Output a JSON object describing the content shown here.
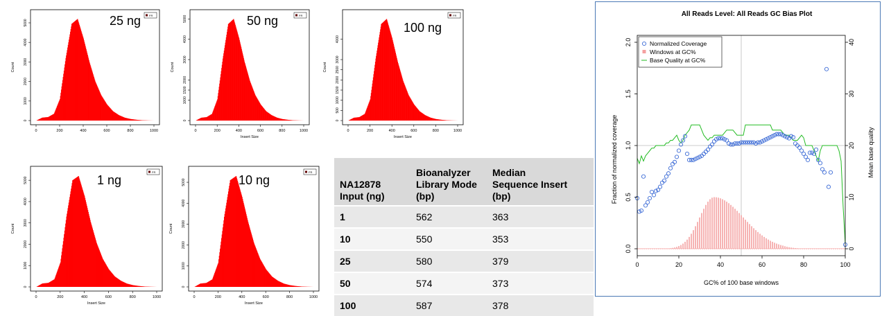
{
  "histograms": [
    {
      "id": "h25",
      "sample_label": "25 ng",
      "ylabel": "Count",
      "xlabel": "",
      "legend": "FR",
      "peak": 5200,
      "yticks": [
        0,
        1000,
        2000,
        3000,
        4000,
        5000
      ],
      "xticks": [
        0,
        200,
        400,
        600,
        800,
        1000
      ]
    },
    {
      "id": "h50",
      "sample_label": "50 ng",
      "ylabel": "Count",
      "xlabel": "Insert Size",
      "legend": "FR",
      "peak": 5000,
      "yticks": [
        0,
        1000,
        1500,
        2000,
        3000,
        4000,
        5000
      ],
      "xticks": [
        0,
        200,
        400,
        600,
        800,
        1000
      ]
    },
    {
      "id": "h100",
      "sample_label": "100 ng",
      "ylabel": "Count",
      "xlabel": "Insert Size",
      "legend": "FR",
      "peak": 5000,
      "yticks": [
        0,
        500,
        1000,
        1500,
        2000,
        2500,
        3000,
        4000
      ],
      "xticks": [
        0,
        200,
        400,
        600,
        800,
        1000
      ]
    },
    {
      "id": "h1",
      "sample_label": "1 ng",
      "ylabel": "Count",
      "xlabel": "Insert Size",
      "legend": "FR",
      "peak": 5200,
      "yticks": [
        0,
        1000,
        2000,
        3000,
        4000,
        5000
      ],
      "xticks": [
        0,
        200,
        400,
        600,
        800,
        1000
      ]
    },
    {
      "id": "h10",
      "sample_label": "10 ng",
      "ylabel": "Count",
      "xlabel": "Insert Size",
      "legend": "FR",
      "peak": 5300,
      "yticks": [
        0,
        1000,
        2000,
        3000,
        4000,
        5000
      ],
      "xticks": [
        0,
        200,
        400,
        600,
        800,
        1000
      ]
    }
  ],
  "table": {
    "headers": [
      "NA12878\nInput (ng)",
      "Bioanalyzer\nLibrary Mode\n(bp)",
      "Median\nSequence Insert\n(bp)"
    ],
    "rows": [
      [
        "1",
        "562",
        "363"
      ],
      [
        "10",
        "550",
        "353"
      ],
      [
        "25",
        "580",
        "379"
      ],
      [
        "50",
        "574",
        "373"
      ],
      [
        "100",
        "587",
        "378"
      ]
    ]
  },
  "chart_data": [
    {
      "type": "bar",
      "title": "",
      "xlabel": "Insert Size",
      "ylabel": "Count",
      "note": "Five insert-size histograms (25, 50, 100, 1, 10 ng), each peaking near 350 bp",
      "x": [
        0,
        50,
        100,
        150,
        200,
        250,
        300,
        350,
        400,
        450,
        500,
        550,
        600,
        650,
        700,
        750,
        800,
        850,
        900,
        950,
        1000
      ],
      "series": [
        {
          "name": "25 ng",
          "values": [
            0,
            150,
            180,
            350,
            1100,
            3200,
            4950,
            5200,
            4200,
            3000,
            2000,
            1300,
            820,
            480,
            280,
            150,
            80,
            40,
            15,
            5,
            0
          ]
        },
        {
          "name": "50 ng",
          "values": [
            0,
            140,
            170,
            330,
            1050,
            3050,
            4750,
            5000,
            4050,
            2900,
            1950,
            1250,
            790,
            460,
            270,
            145,
            75,
            38,
            14,
            5,
            0
          ]
        },
        {
          "name": "100 ng",
          "values": [
            0,
            140,
            170,
            330,
            1050,
            3050,
            4750,
            5000,
            4050,
            2900,
            1950,
            1250,
            790,
            460,
            270,
            145,
            75,
            38,
            14,
            5,
            0
          ]
        },
        {
          "name": "1 ng",
          "values": [
            0,
            160,
            190,
            360,
            1150,
            3300,
            5000,
            5200,
            4250,
            3050,
            2050,
            1320,
            830,
            490,
            290,
            155,
            82,
            42,
            16,
            6,
            0
          ]
        },
        {
          "name": "10 ng",
          "values": [
            0,
            160,
            190,
            360,
            1150,
            3350,
            5100,
            5300,
            4300,
            3100,
            2080,
            1340,
            840,
            495,
            292,
            156,
            83,
            42,
            16,
            6,
            0
          ]
        }
      ],
      "xlim": [
        0,
        1000
      ]
    },
    {
      "type": "line",
      "title": "All Reads Level: All Reads  GC Bias Plot",
      "xlabel": "GC% of 100 base windows",
      "ylabel": "Fraction of normalized coverage",
      "y2label": "Mean base quality",
      "xlim": [
        0,
        100
      ],
      "ylim": [
        0,
        2.0
      ],
      "y2lim": [
        0,
        40
      ],
      "xticks": [
        0,
        20,
        40,
        60,
        80,
        100
      ],
      "yticks": [
        0.0,
        0.5,
        1.0,
        1.5,
        2.0
      ],
      "y2ticks": [
        0,
        10,
        20,
        30,
        40
      ],
      "legend": [
        "Normalized Coverage",
        "Windows at GC%",
        "Base Quality at GC%"
      ],
      "colors": {
        "coverage": "#3c6bd6",
        "windows": "#f4a0a0",
        "quality": "#22bb22",
        "grid": "#bbbbbb"
      },
      "coverage_points": [
        [
          0,
          0.49
        ],
        [
          1,
          0.36
        ],
        [
          2,
          0.37
        ],
        [
          3,
          0.7
        ],
        [
          4,
          0.42
        ],
        [
          5,
          0.45
        ],
        [
          6,
          0.49
        ],
        [
          7,
          0.55
        ],
        [
          8,
          0.52
        ],
        [
          9,
          0.56
        ],
        [
          10,
          0.57
        ],
        [
          11,
          0.6
        ],
        [
          12,
          0.64
        ],
        [
          13,
          0.66
        ],
        [
          14,
          0.7
        ],
        [
          15,
          0.73
        ],
        [
          16,
          0.78
        ],
        [
          17,
          0.82
        ],
        [
          18,
          0.84
        ],
        [
          19,
          0.89
        ],
        [
          20,
          0.95
        ],
        [
          21,
          1.01
        ],
        [
          22,
          1.05
        ],
        [
          23,
          1.09
        ],
        [
          24,
          0.92
        ],
        [
          25,
          0.86
        ],
        [
          26,
          0.86
        ],
        [
          27,
          0.86
        ],
        [
          28,
          0.87
        ],
        [
          29,
          0.88
        ],
        [
          30,
          0.89
        ],
        [
          31,
          0.9
        ],
        [
          32,
          0.92
        ],
        [
          33,
          0.94
        ],
        [
          34,
          0.96
        ],
        [
          35,
          0.99
        ],
        [
          36,
          1.01
        ],
        [
          37,
          1.04
        ],
        [
          38,
          1.06
        ],
        [
          39,
          1.07
        ],
        [
          40,
          1.07
        ],
        [
          41,
          1.07
        ],
        [
          42,
          1.06
        ],
        [
          43,
          1.05
        ],
        [
          44,
          1.02
        ],
        [
          45,
          1.01
        ],
        [
          46,
          1.01
        ],
        [
          47,
          1.02
        ],
        [
          48,
          1.02
        ],
        [
          49,
          1.02
        ],
        [
          50,
          1.03
        ],
        [
          51,
          1.03
        ],
        [
          52,
          1.03
        ],
        [
          53,
          1.03
        ],
        [
          54,
          1.03
        ],
        [
          55,
          1.03
        ],
        [
          56,
          1.03
        ],
        [
          57,
          1.02
        ],
        [
          58,
          1.03
        ],
        [
          59,
          1.03
        ],
        [
          60,
          1.04
        ],
        [
          61,
          1.05
        ],
        [
          62,
          1.06
        ],
        [
          63,
          1.07
        ],
        [
          64,
          1.08
        ],
        [
          65,
          1.09
        ],
        [
          66,
          1.1
        ],
        [
          67,
          1.11
        ],
        [
          68,
          1.11
        ],
        [
          69,
          1.11
        ],
        [
          70,
          1.1
        ],
        [
          71,
          1.09
        ],
        [
          72,
          1.08
        ],
        [
          73,
          1.07
        ],
        [
          74,
          1.09
        ],
        [
          75,
          1.08
        ],
        [
          76,
          1.02
        ],
        [
          77,
          1.0
        ],
        [
          78,
          0.98
        ],
        [
          79,
          0.95
        ],
        [
          80,
          0.92
        ],
        [
          81,
          0.89
        ],
        [
          82,
          0.86
        ],
        [
          83,
          0.93
        ],
        [
          84,
          0.93
        ],
        [
          85,
          0.92
        ],
        [
          86,
          0.96
        ],
        [
          87,
          0.86
        ],
        [
          88,
          0.83
        ],
        [
          89,
          0.77
        ],
        [
          90,
          0.74
        ],
        [
          91,
          1.74
        ],
        [
          92,
          0.6
        ],
        [
          93,
          0.74
        ],
        [
          100,
          0.04
        ]
      ],
      "quality_points": [
        [
          0,
          17.5
        ],
        [
          1,
          16.5
        ],
        [
          2,
          18
        ],
        [
          3,
          17
        ],
        [
          4,
          18
        ],
        [
          5,
          18.5
        ],
        [
          6,
          19
        ],
        [
          7,
          19.5
        ],
        [
          8,
          19.5
        ],
        [
          9,
          20
        ],
        [
          10,
          20
        ],
        [
          11,
          20
        ],
        [
          12,
          20
        ],
        [
          13,
          20
        ],
        [
          14,
          20.5
        ],
        [
          15,
          20.5
        ],
        [
          16,
          21
        ],
        [
          17,
          21
        ],
        [
          18,
          21.5
        ],
        [
          19,
          22
        ],
        [
          20,
          21
        ],
        [
          21,
          20.5
        ],
        [
          22,
          21
        ],
        [
          23,
          22
        ],
        [
          24,
          22.5
        ],
        [
          25,
          23
        ],
        [
          26,
          24
        ],
        [
          27,
          24
        ],
        [
          28,
          24
        ],
        [
          29,
          24
        ],
        [
          30,
          24
        ],
        [
          31,
          23
        ],
        [
          32,
          22
        ],
        [
          33,
          21.5
        ],
        [
          34,
          21
        ],
        [
          35,
          21.5
        ],
        [
          36,
          21.5
        ],
        [
          37,
          22
        ],
        [
          38,
          22
        ],
        [
          39,
          22
        ],
        [
          40,
          22
        ],
        [
          41,
          22
        ],
        [
          42,
          22.5
        ],
        [
          43,
          23
        ],
        [
          44,
          23
        ],
        [
          45,
          23
        ],
        [
          46,
          23
        ],
        [
          47,
          22.5
        ],
        [
          48,
          22
        ],
        [
          49,
          22
        ],
        [
          50,
          22
        ],
        [
          51,
          22
        ],
        [
          52,
          24
        ],
        [
          53,
          24
        ],
        [
          54,
          24
        ],
        [
          55,
          24
        ],
        [
          56,
          24
        ],
        [
          57,
          24
        ],
        [
          58,
          24
        ],
        [
          59,
          24
        ],
        [
          60,
          24
        ],
        [
          61,
          24
        ],
        [
          62,
          24
        ],
        [
          63,
          24
        ],
        [
          64,
          24
        ],
        [
          65,
          23
        ],
        [
          66,
          23
        ],
        [
          67,
          23
        ],
        [
          68,
          23
        ],
        [
          69,
          23
        ],
        [
          70,
          22.5
        ],
        [
          71,
          22
        ],
        [
          72,
          22
        ],
        [
          73,
          22
        ],
        [
          74,
          21.5
        ],
        [
          75,
          21
        ],
        [
          76,
          21
        ],
        [
          77,
          21
        ],
        [
          78,
          21.5
        ],
        [
          79,
          22
        ],
        [
          80,
          21.5
        ],
        [
          81,
          20
        ],
        [
          82,
          20
        ],
        [
          83,
          20
        ],
        [
          84,
          20
        ],
        [
          85,
          19
        ],
        [
          86,
          18
        ],
        [
          87,
          17
        ],
        [
          88,
          19
        ],
        [
          89,
          20
        ],
        [
          90,
          20
        ],
        [
          91,
          20
        ],
        [
          92,
          20
        ],
        [
          93,
          20
        ],
        [
          94,
          20
        ],
        [
          95,
          20
        ],
        [
          96,
          20
        ],
        [
          97,
          19
        ],
        [
          98,
          17
        ],
        [
          99,
          8
        ],
        [
          100,
          1
        ]
      ],
      "windows_center": 37,
      "windows_peak": 0.5
    }
  ]
}
